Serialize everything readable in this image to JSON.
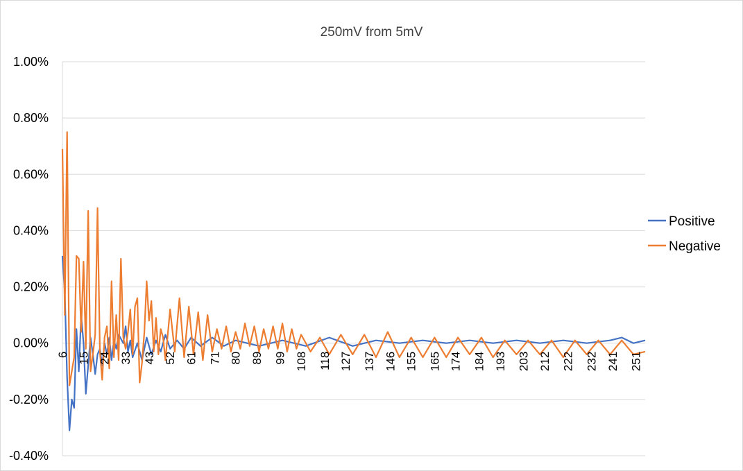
{
  "chart_data": {
    "type": "line",
    "title": "250mV from 5mV",
    "xlabel": "",
    "ylabel": "",
    "ylim": [
      -0.004,
      0.01
    ],
    "y_ticks": [
      "1.00%",
      "0.80%",
      "0.60%",
      "0.40%",
      "0.20%",
      "0.00%",
      "-0.20%",
      "-0.40%"
    ],
    "y_tick_values": [
      0.01,
      0.008,
      0.006,
      0.004,
      0.002,
      0.0,
      -0.002,
      -0.004
    ],
    "x_range": [
      6,
      255
    ],
    "x_tick_labels": [
      "6",
      "15",
      "24",
      "33",
      "43",
      "52",
      "61",
      "71",
      "80",
      "89",
      "99",
      "108",
      "118",
      "127",
      "137",
      "146",
      "155",
      "165",
      "174",
      "184",
      "193",
      "203",
      "212",
      "222",
      "232",
      "241",
      "251"
    ],
    "x_tick_values": [
      6,
      15,
      24,
      33,
      43,
      52,
      61,
      71,
      80,
      89,
      99,
      108,
      118,
      127,
      137,
      146,
      155,
      165,
      174,
      184,
      193,
      203,
      212,
      222,
      232,
      241,
      251
    ],
    "grid": true,
    "legend_position": "right",
    "series": [
      {
        "name": "Positive",
        "color": "#4472C4",
        "x": [
          6,
          7,
          8,
          9,
          10,
          11,
          12,
          13,
          14,
          15,
          16,
          17,
          18,
          19,
          20,
          21,
          22,
          23,
          24,
          25,
          26,
          27,
          28,
          29,
          30,
          32,
          33,
          34,
          35,
          36,
          38,
          40,
          42,
          44,
          46,
          48,
          50,
          52,
          55,
          58,
          61,
          65,
          70,
          75,
          80,
          90,
          100,
          110,
          120,
          130,
          140,
          150,
          160,
          170,
          180,
          190,
          200,
          210,
          220,
          230,
          240,
          245,
          250,
          255
        ],
        "y": [
          0.0031,
          0.0018,
          -0.0012,
          -0.0031,
          -0.002,
          -0.0023,
          0.0005,
          -0.001,
          0.001,
          0.0,
          -0.0018,
          -0.0008,
          0.0002,
          -0.0004,
          -0.0011,
          -0.0004,
          -0.0002,
          -0.0008,
          0.0,
          -0.0004,
          0.0002,
          -0.0006,
          0.0001,
          -0.0002,
          0.0003,
          0.0,
          0.0006,
          -0.0003,
          0.0001,
          -0.0005,
          0.0,
          -0.0006,
          0.0002,
          -0.0004,
          0.0001,
          -0.0003,
          0.0003,
          -0.0002,
          0.0001,
          -0.0002,
          0.0002,
          -0.0001,
          0.0002,
          -0.0001,
          0.0001,
          -0.0001,
          0.0001,
          -0.0001,
          0.0002,
          -0.0001,
          0.0001,
          0.0,
          0.0001,
          0.0,
          0.0001,
          0.0,
          0.0001,
          0.0,
          0.0001,
          0.0,
          0.0001,
          0.0002,
          0.0,
          0.0001
        ]
      },
      {
        "name": "Negative",
        "color": "#ED7D31",
        "x": [
          6,
          7,
          8,
          9,
          10,
          11,
          12,
          13,
          14,
          15,
          16,
          17,
          18,
          19,
          20,
          21,
          22,
          23,
          24,
          25,
          26,
          27,
          28,
          29,
          30,
          31,
          32,
          33,
          34,
          35,
          36,
          37,
          38,
          39,
          40,
          41,
          42,
          43,
          44,
          45,
          46,
          47,
          48,
          49,
          50,
          52,
          54,
          56,
          58,
          60,
          62,
          64,
          66,
          68,
          70,
          72,
          74,
          76,
          78,
          80,
          82,
          84,
          86,
          88,
          90,
          92,
          94,
          96,
          98,
          100,
          102,
          104,
          106,
          108,
          112,
          116,
          120,
          125,
          130,
          135,
          140,
          145,
          150,
          155,
          160,
          165,
          170,
          175,
          180,
          185,
          190,
          195,
          200,
          205,
          210,
          215,
          220,
          225,
          230,
          235,
          240,
          245,
          250,
          255
        ],
        "y": [
          0.0069,
          0.001,
          0.0075,
          -0.0015,
          -0.001,
          -0.0005,
          0.0031,
          0.003,
          0.0004,
          0.0029,
          -0.0002,
          0.0047,
          -0.001,
          -0.0004,
          0.0003,
          0.0048,
          -0.0003,
          -0.0013,
          0.0002,
          0.0006,
          -0.0009,
          0.0022,
          -0.0005,
          0.001,
          -0.0006,
          0.003,
          0.0002,
          -0.0002,
          0.0004,
          0.0012,
          -0.0004,
          0.0013,
          0.0016,
          -0.0014,
          -0.0007,
          0.0004,
          0.0022,
          0.0008,
          0.0015,
          -0.0003,
          0.0009,
          -0.0004,
          0.0005,
          0.0002,
          -0.0006,
          0.0012,
          -0.0003,
          0.0016,
          -0.0005,
          0.0013,
          -0.0004,
          0.0011,
          -0.0006,
          0.001,
          -0.0003,
          0.0005,
          -0.0002,
          0.0006,
          -0.0003,
          0.0004,
          -0.0002,
          0.0007,
          -0.0001,
          0.0006,
          -0.0003,
          0.0005,
          -0.0002,
          0.0006,
          -0.0002,
          0.0007,
          -0.0003,
          0.0005,
          -0.0002,
          0.0003,
          -0.0003,
          0.0002,
          -0.0004,
          0.0003,
          -0.0004,
          0.0003,
          -0.0005,
          0.0004,
          -0.0005,
          0.0002,
          -0.0005,
          0.0002,
          -0.0005,
          0.0002,
          -0.0004,
          0.0002,
          -0.0005,
          0.0001,
          -0.0004,
          0.0001,
          -0.0004,
          0.0001,
          -0.0005,
          0.0001,
          -0.0004,
          0.0001,
          -0.0004,
          0.0001,
          -0.0004,
          -0.0003
        ]
      }
    ]
  }
}
